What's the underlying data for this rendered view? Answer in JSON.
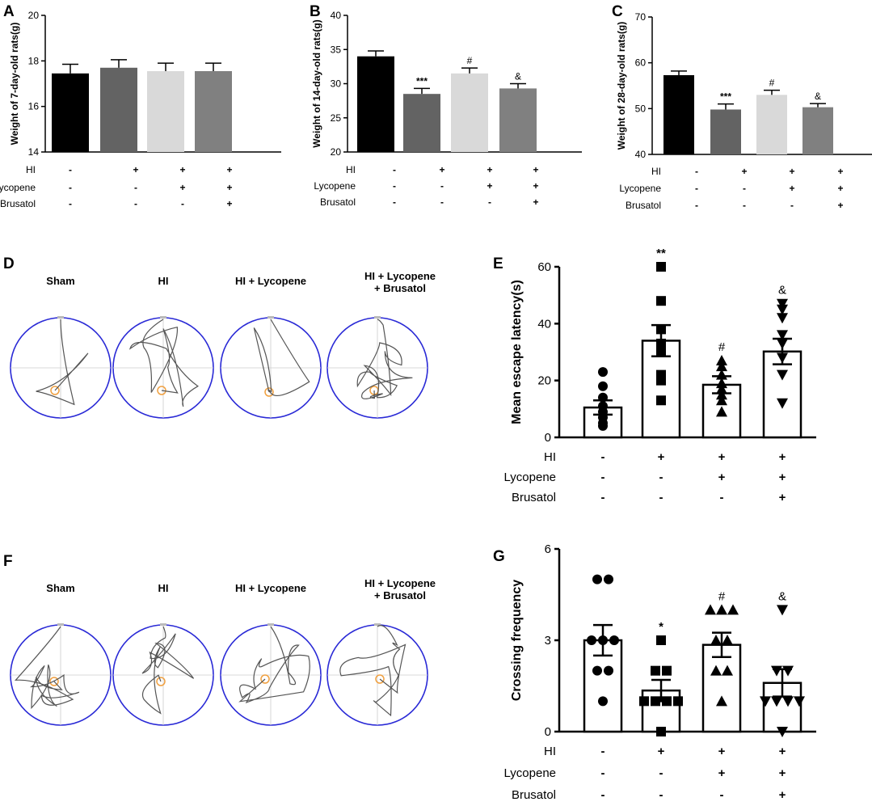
{
  "panels": [
    {
      "id": "A",
      "letter": "A",
      "ylabel": "Weight of 7-day-old rats(g)"
    },
    {
      "id": "B",
      "letter": "B",
      "ylabel": "Weight of 14-day-old rats(g)"
    },
    {
      "id": "C",
      "letter": "C",
      "ylabel": "Weight of 28-day-old rats(g)"
    },
    {
      "id": "D",
      "letter": "D"
    },
    {
      "id": "E",
      "letter": "E",
      "ylabel": "Mean escape latency(s)"
    },
    {
      "id": "F",
      "letter": "F"
    },
    {
      "id": "G",
      "letter": "G",
      "ylabel": "Crossing frequency"
    }
  ],
  "groups": [
    "Sham",
    "HI",
    "HI + Lycopene",
    "HI + Lycopene + Brusatol"
  ],
  "treatment_rows": [
    {
      "label": "HI",
      "signs": [
        "-",
        "+",
        "+",
        "+"
      ]
    },
    {
      "label": "Lycopene",
      "signs": [
        "-",
        "-",
        "+",
        "+"
      ]
    },
    {
      "label": "Brusatol",
      "signs": [
        "-",
        "-",
        "-",
        "+"
      ]
    }
  ],
  "maze_titles": {
    "D": [
      "Sham",
      "HI",
      "HI + Lycopene",
      "HI + Lycopene\n+ Brusatol"
    ],
    "F": [
      "Sham",
      "HI",
      "HI + Lycopene",
      "HI + Lycopene\n+ Brusatol"
    ]
  },
  "colors": {
    "bar_A": [
      "#000000",
      "#636363",
      "#d9d9d9",
      "#808080"
    ],
    "maze_border": "#2a2ad6",
    "maze_path": "#555555",
    "platform": "#f0a040"
  },
  "chart_data": [
    {
      "id": "A",
      "type": "bar",
      "ylabel": "Weight of 7-day-old rats(g)",
      "ylim": [
        14,
        20
      ],
      "yticks": [
        14,
        16,
        18,
        20
      ],
      "values": [
        17.45,
        17.7,
        17.55,
        17.55
      ],
      "errors": [
        0.4,
        0.35,
        0.35,
        0.35
      ],
      "significance": [
        "",
        "",
        "",
        ""
      ]
    },
    {
      "id": "B",
      "type": "bar",
      "ylabel": "Weight of 14-day-old rats(g)",
      "ylim": [
        20,
        40
      ],
      "yticks": [
        20,
        25,
        30,
        35,
        40
      ],
      "values": [
        34.0,
        28.5,
        31.5,
        29.3
      ],
      "errors": [
        0.8,
        0.8,
        0.8,
        0.7
      ],
      "significance": [
        "",
        "***",
        "#",
        "&"
      ]
    },
    {
      "id": "C",
      "type": "bar",
      "ylabel": "Weight of 28-day-old rats(g)",
      "ylim": [
        40,
        70
      ],
      "yticks": [
        40,
        50,
        60,
        70
      ],
      "values": [
        57.3,
        49.8,
        53.0,
        50.3
      ],
      "errors": [
        0.9,
        1.2,
        1.0,
        0.8
      ],
      "significance": [
        "",
        "***",
        "#",
        "&"
      ]
    },
    {
      "id": "E",
      "type": "bar",
      "ylabel": "Mean escape latency(s)",
      "ylim": [
        0,
        60
      ],
      "yticks": [
        0,
        20,
        40,
        60
      ],
      "values": [
        10.5,
        34.0,
        18.5,
        30.2
      ],
      "errors": [
        2.5,
        5.5,
        3.0,
        4.5
      ],
      "significance": [
        "",
        "**",
        "#",
        "&"
      ],
      "points": [
        [
          23,
          18,
          14,
          11,
          9,
          7,
          5,
          4
        ],
        [
          60,
          48,
          38,
          33,
          30,
          22,
          20,
          13
        ],
        [
          27,
          25,
          22,
          19,
          17,
          15,
          13,
          9
        ],
        [
          47,
          45,
          42,
          36,
          33,
          28,
          22,
          12
        ]
      ],
      "markers": [
        "circle",
        "square",
        "triangle-up",
        "triangle-down"
      ]
    },
    {
      "id": "G",
      "type": "bar",
      "ylabel": "Crossing frequency",
      "ylim": [
        0,
        6
      ],
      "yticks": [
        0,
        3,
        6
      ],
      "values": [
        3.0,
        1.35,
        2.85,
        1.6
      ],
      "errors": [
        0.5,
        0.35,
        0.4,
        0.45
      ],
      "significance": [
        "",
        "*",
        "#",
        "&"
      ],
      "points": [
        [
          5,
          5,
          3,
          3,
          3,
          2,
          2,
          1
        ],
        [
          3,
          2,
          2,
          1,
          1,
          1,
          1,
          0
        ],
        [
          4,
          4,
          4,
          3,
          3,
          2,
          2,
          1
        ],
        [
          4,
          2,
          2,
          1,
          1,
          1,
          1,
          0
        ]
      ],
      "markers": [
        "circle",
        "square",
        "triangle-up",
        "triangle-down"
      ]
    }
  ]
}
